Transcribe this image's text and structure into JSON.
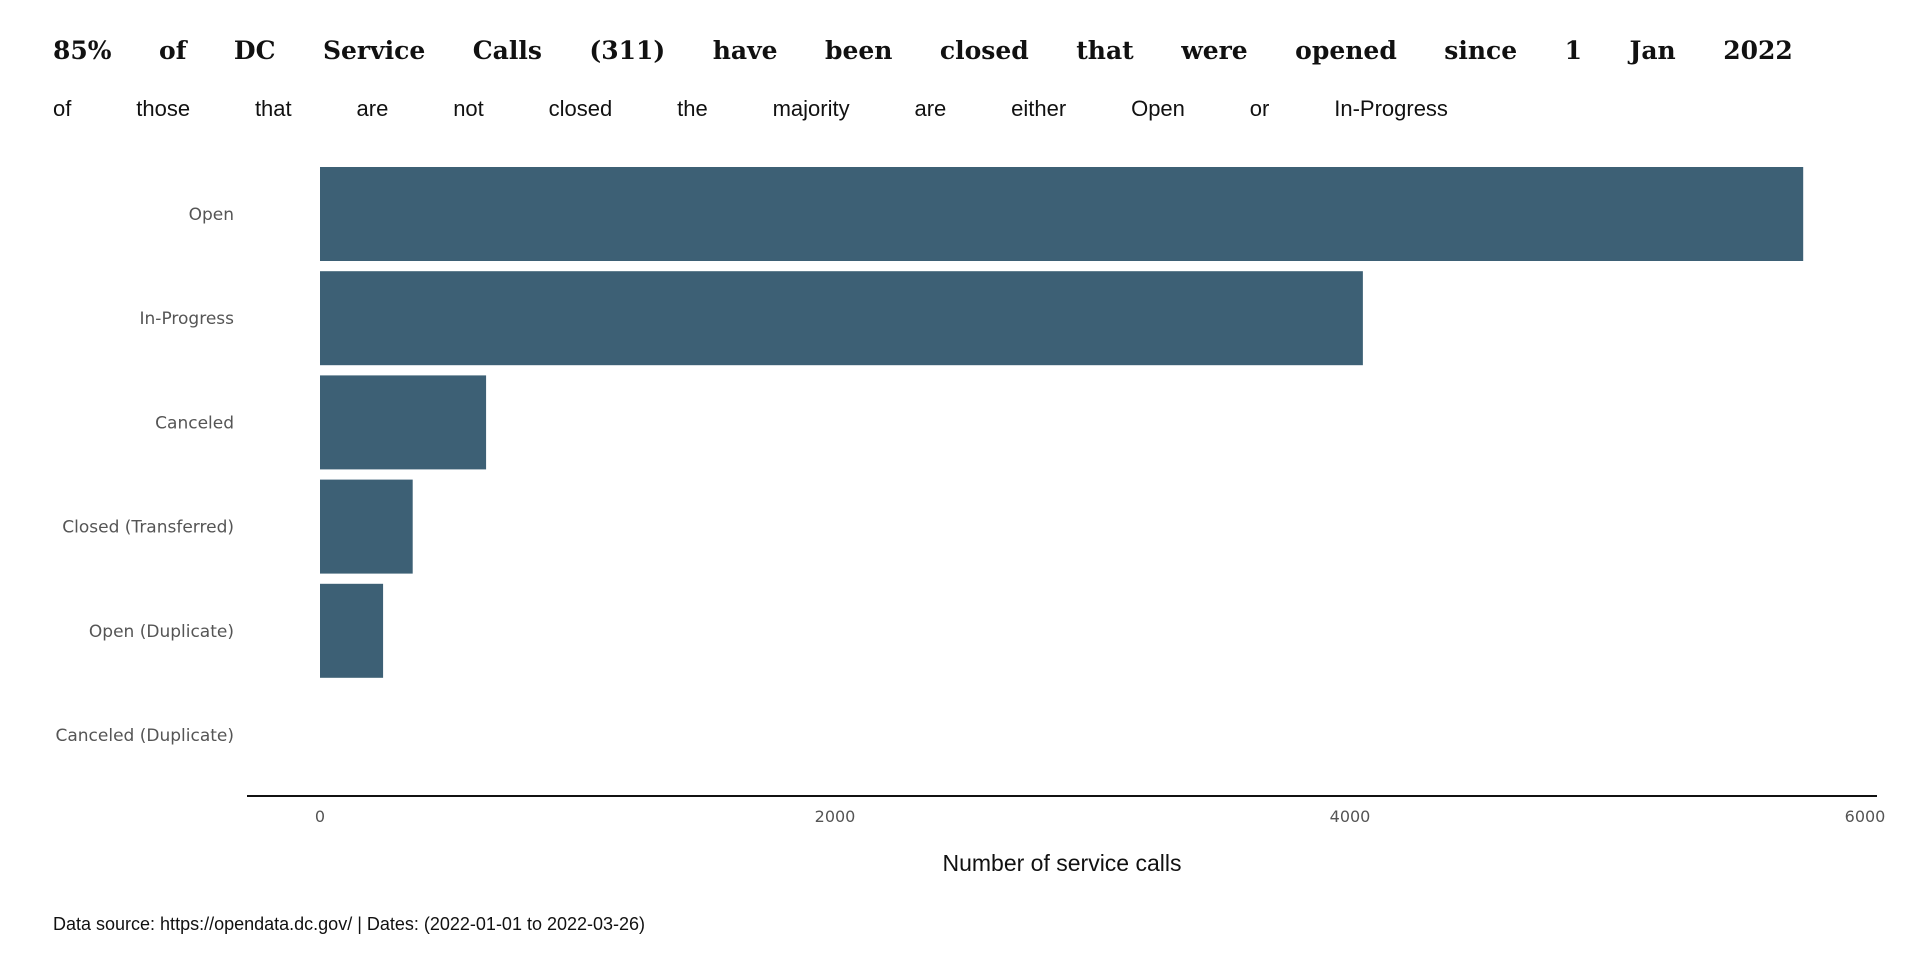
{
  "title_words": [
    "85%",
    "of",
    "DC",
    "Service",
    "Calls",
    "(311)",
    "have",
    "been",
    "closed",
    "that",
    "were",
    "opened",
    "since",
    "1",
    "Jan",
    "2022"
  ],
  "subtitle_words": [
    "of",
    "those",
    "that",
    "are",
    "not",
    "closed",
    "the",
    "majority",
    "are",
    "either",
    "Open",
    "or",
    "In-Progress"
  ],
  "source_note": "Data source: https://opendata.dc.gov/ | Dates: (2022-01-01 to 2022-03-26)",
  "colors": {
    "bar": "#3d6075",
    "axis": "#111111"
  },
  "chart_data": {
    "type": "bar",
    "orientation": "horizontal",
    "categories": [
      "Open",
      "In-Progress",
      "Canceled",
      "Closed (Transferred)",
      "Open (Duplicate)",
      "Canceled (Duplicate)"
    ],
    "values": [
      5760,
      4050,
      645,
      360,
      245,
      0
    ],
    "xlabel": "Number of service calls",
    "ylabel": "",
    "xlim": [
      0,
      6000
    ],
    "xticks": [
      0,
      2000,
      4000,
      6000
    ],
    "grid": false
  }
}
